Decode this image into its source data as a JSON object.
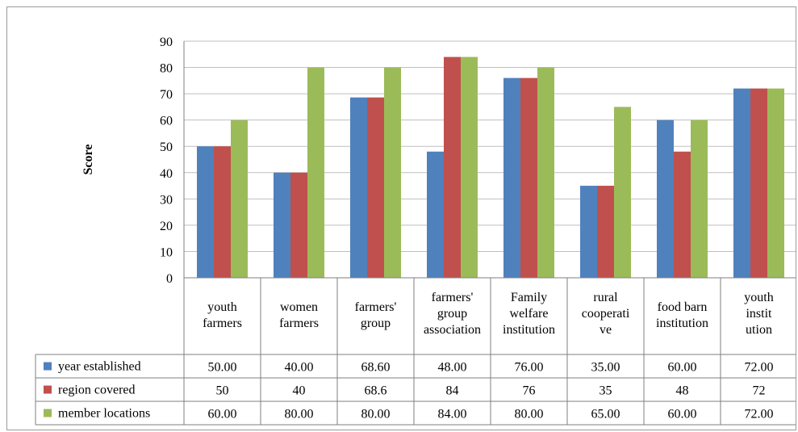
{
  "chart_data": {
    "type": "bar",
    "ylabel": "Score",
    "ylim": [
      0,
      90
    ],
    "yticks": [
      0,
      10,
      20,
      30,
      40,
      50,
      60,
      70,
      80,
      90
    ],
    "grid": true,
    "legend": "data-table-left",
    "categories": [
      [
        "youth",
        "farmers"
      ],
      [
        "women",
        "farmers"
      ],
      [
        "farmers'",
        "group"
      ],
      [
        "farmers'",
        "group",
        "association"
      ],
      [
        "Family",
        "welfare",
        "institution"
      ],
      [
        "rural",
        "cooperati",
        "ve"
      ],
      [
        "food barn",
        "institution"
      ],
      [
        "youth",
        "instit",
        "ution"
      ]
    ],
    "series": [
      {
        "name": "year established",
        "color": "#4F81BD",
        "values": [
          50,
          40,
          68.6,
          48,
          76,
          35,
          60,
          72
        ],
        "table": [
          "50.00",
          "40.00",
          "68.60",
          "48.00",
          "76.00",
          "35.00",
          "60.00",
          "72.00"
        ]
      },
      {
        "name": "region covered",
        "color": "#C0504D",
        "values": [
          50,
          40,
          68.6,
          84,
          76,
          35,
          48,
          72
        ],
        "table": [
          "50",
          "40",
          "68.6",
          "84",
          "76",
          "35",
          "48",
          "72"
        ]
      },
      {
        "name": "member locations",
        "color": "#9BBB59",
        "values": [
          60,
          80,
          80,
          84,
          80,
          65,
          60,
          72
        ],
        "table": [
          "60.00",
          "80.00",
          "80.00",
          "84.00",
          "80.00",
          "65.00",
          "60.00",
          "72.00"
        ]
      }
    ]
  }
}
